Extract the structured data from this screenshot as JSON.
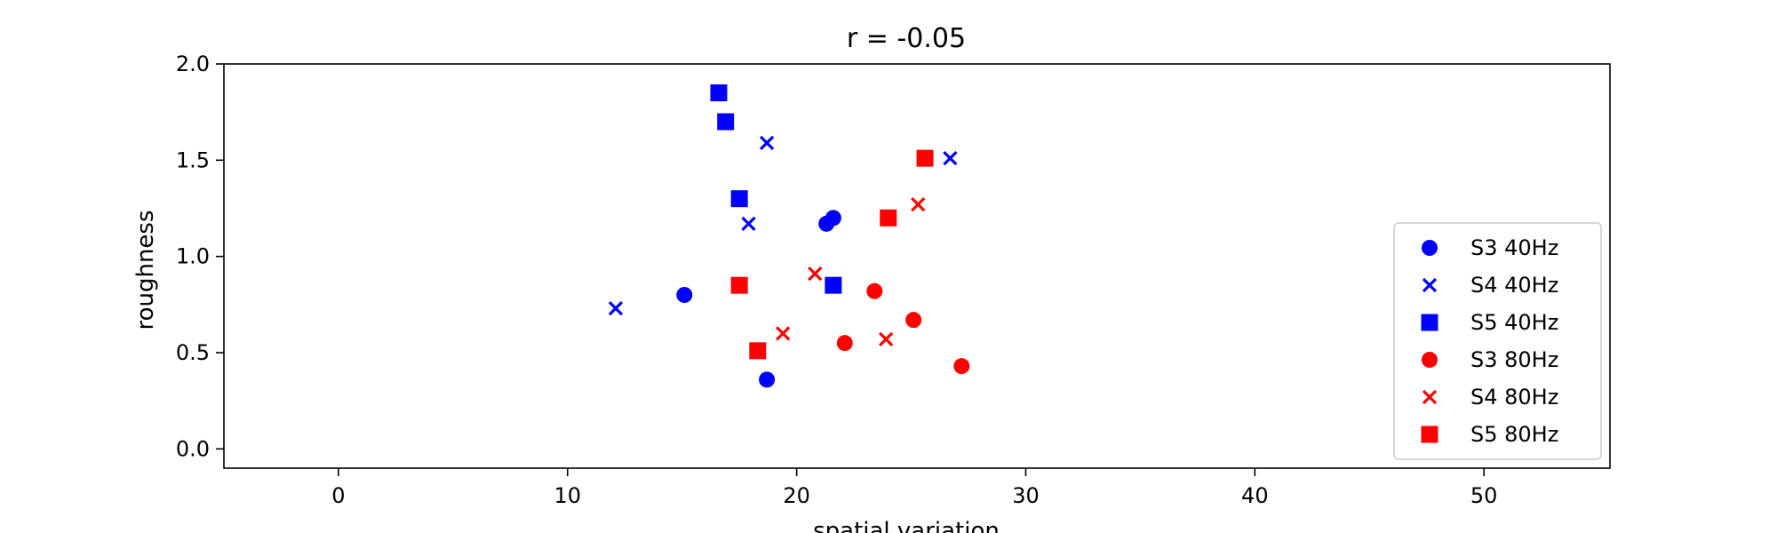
{
  "chart_data": {
    "type": "scatter",
    "title": "r = -0.05",
    "xlabel": "spatial variation",
    "ylabel": "roughness",
    "xlim": [
      -5,
      55.5
    ],
    "ylim": [
      -0.1,
      2.0
    ],
    "xticks": [
      0,
      10,
      20,
      30,
      40,
      50
    ],
    "yticks": [
      0.0,
      0.5,
      1.0,
      1.5,
      2.0
    ],
    "xtick_labels": [
      "0",
      "10",
      "20",
      "30",
      "40",
      "50"
    ],
    "ytick_labels": [
      "0.0",
      "0.5",
      "1.0",
      "1.5",
      "2.0"
    ],
    "grid": false,
    "legend_position": "lower-right",
    "series": [
      {
        "name": "S3 40Hz",
        "color": "#0000ff",
        "marker": "circle",
        "points": [
          [
            15.1,
            0.8
          ],
          [
            21.3,
            1.17
          ],
          [
            21.6,
            1.2
          ],
          [
            18.7,
            0.36
          ]
        ]
      },
      {
        "name": "S4 40Hz",
        "color": "#0000ff",
        "marker": "x",
        "points": [
          [
            12.1,
            0.73
          ],
          [
            18.7,
            1.59
          ],
          [
            17.9,
            1.17
          ],
          [
            26.7,
            1.51
          ]
        ]
      },
      {
        "name": "S5 40Hz",
        "color": "#0000ff",
        "marker": "square",
        "points": [
          [
            16.6,
            1.85
          ],
          [
            16.9,
            1.7
          ],
          [
            17.5,
            1.3
          ],
          [
            21.6,
            0.85
          ]
        ]
      },
      {
        "name": "S3 80Hz",
        "color": "#ff0000",
        "marker": "circle",
        "points": [
          [
            23.4,
            0.82
          ],
          [
            22.1,
            0.55
          ],
          [
            25.1,
            0.67
          ],
          [
            27.2,
            0.43
          ]
        ]
      },
      {
        "name": "S4 80Hz",
        "color": "#ff0000",
        "marker": "x",
        "points": [
          [
            20.8,
            0.91
          ],
          [
            19.4,
            0.6
          ],
          [
            23.9,
            0.57
          ],
          [
            25.3,
            1.27
          ]
        ]
      },
      {
        "name": "S5 80Hz",
        "color": "#ff0000",
        "marker": "square",
        "points": [
          [
            17.5,
            0.85
          ],
          [
            18.3,
            0.51
          ],
          [
            24.0,
            1.2
          ],
          [
            25.6,
            1.51
          ]
        ]
      }
    ]
  }
}
